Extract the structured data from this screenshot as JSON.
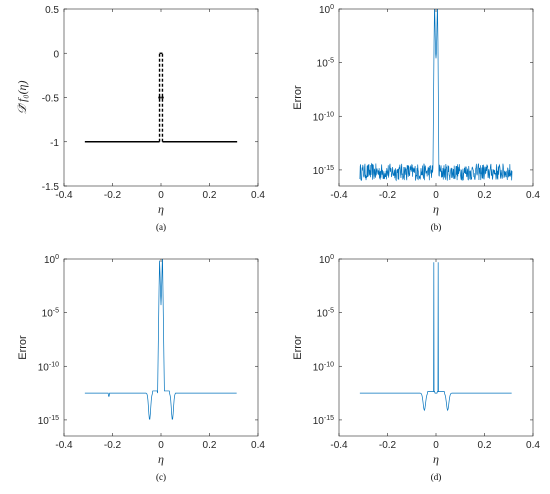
{
  "colors": {
    "accent": "#0072BD",
    "black": "#000000",
    "axis": "#262626"
  },
  "chart_data": [
    {
      "type": "line",
      "caption": "(a)",
      "xlabel": "η",
      "ylabel": "𝒟̃ f₀(η)",
      "xlim": [
        -0.4,
        0.4
      ],
      "ylim": [
        -1.5,
        0.5
      ],
      "xticks": [
        "-0.4",
        "-0.2",
        "0",
        "0.2",
        "0.4"
      ],
      "yticks": [
        "0.5",
        "0",
        "-0.5",
        "-1",
        "-1.5"
      ],
      "yscale": "linear",
      "series": [
        {
          "style": "solid",
          "color": "#000000",
          "x": [
            -0.314,
            -0.006
          ],
          "y": [
            -1,
            -1
          ]
        },
        {
          "style": "solid",
          "color": "#000000",
          "x": [
            0.006,
            0.314
          ],
          "y": [
            -1,
            -1
          ]
        },
        {
          "style": "solid",
          "color": "#000000",
          "x": [
            -0.006,
            0.006
          ],
          "y": [
            0,
            0
          ]
        },
        {
          "style": "dashed",
          "color": "#000000",
          "x": [
            -0.006,
            -0.006
          ],
          "y": [
            -1,
            0
          ]
        },
        {
          "style": "dashed",
          "color": "#000000",
          "x": [
            0.006,
            0.006
          ],
          "y": [
            -1,
            0
          ]
        },
        {
          "style": "dots",
          "color": "#000000",
          "x": [
            -0.006,
            0.006
          ],
          "y": [
            -0.5,
            -0.5
          ]
        }
      ]
    },
    {
      "type": "line",
      "caption": "(b)",
      "xlabel": "η",
      "ylabel": "Error",
      "xlim": [
        -0.4,
        0.4
      ],
      "yscale": "log",
      "ylim_exp": [
        -16.5,
        0
      ],
      "xticks": [
        "-0.4",
        "-0.2",
        "0",
        "0.2",
        "0.4"
      ],
      "yticks_exp": [
        0,
        -5,
        -10,
        -15
      ],
      "profile": "noisy",
      "series": [
        {
          "color": "#0072BD",
          "x_range": [
            -0.314,
            0.314
          ],
          "floor_exp": -15.2
        }
      ]
    },
    {
      "type": "line",
      "caption": "(c)",
      "xlabel": "η",
      "ylabel": "Error",
      "xlim": [
        -0.4,
        0.4
      ],
      "yscale": "log",
      "ylim_exp": [
        -16.5,
        0
      ],
      "xticks": [
        "-0.4",
        "-0.2",
        "0",
        "0.2",
        "0.4"
      ],
      "yticks_exp": [
        0,
        -5,
        -10,
        -15
      ],
      "profile": "smooth-peak",
      "series": [
        {
          "color": "#0072BD",
          "x_range": [
            -0.314,
            0.314
          ],
          "floor_exp": -12.5
        }
      ]
    },
    {
      "type": "line",
      "caption": "(d)",
      "xlabel": "η",
      "ylabel": "Error",
      "xlim": [
        -0.4,
        0.4
      ],
      "yscale": "log",
      "ylim_exp": [
        -16.5,
        0
      ],
      "xticks": [
        "-0.4",
        "-0.2",
        "0",
        "0.2",
        "0.4"
      ],
      "yticks_exp": [
        0,
        -5,
        -10,
        -15
      ],
      "profile": "spikes",
      "series": [
        {
          "color": "#0072BD",
          "x_range": [
            -0.314,
            0.314
          ],
          "floor_exp": -12.5
        }
      ]
    }
  ]
}
